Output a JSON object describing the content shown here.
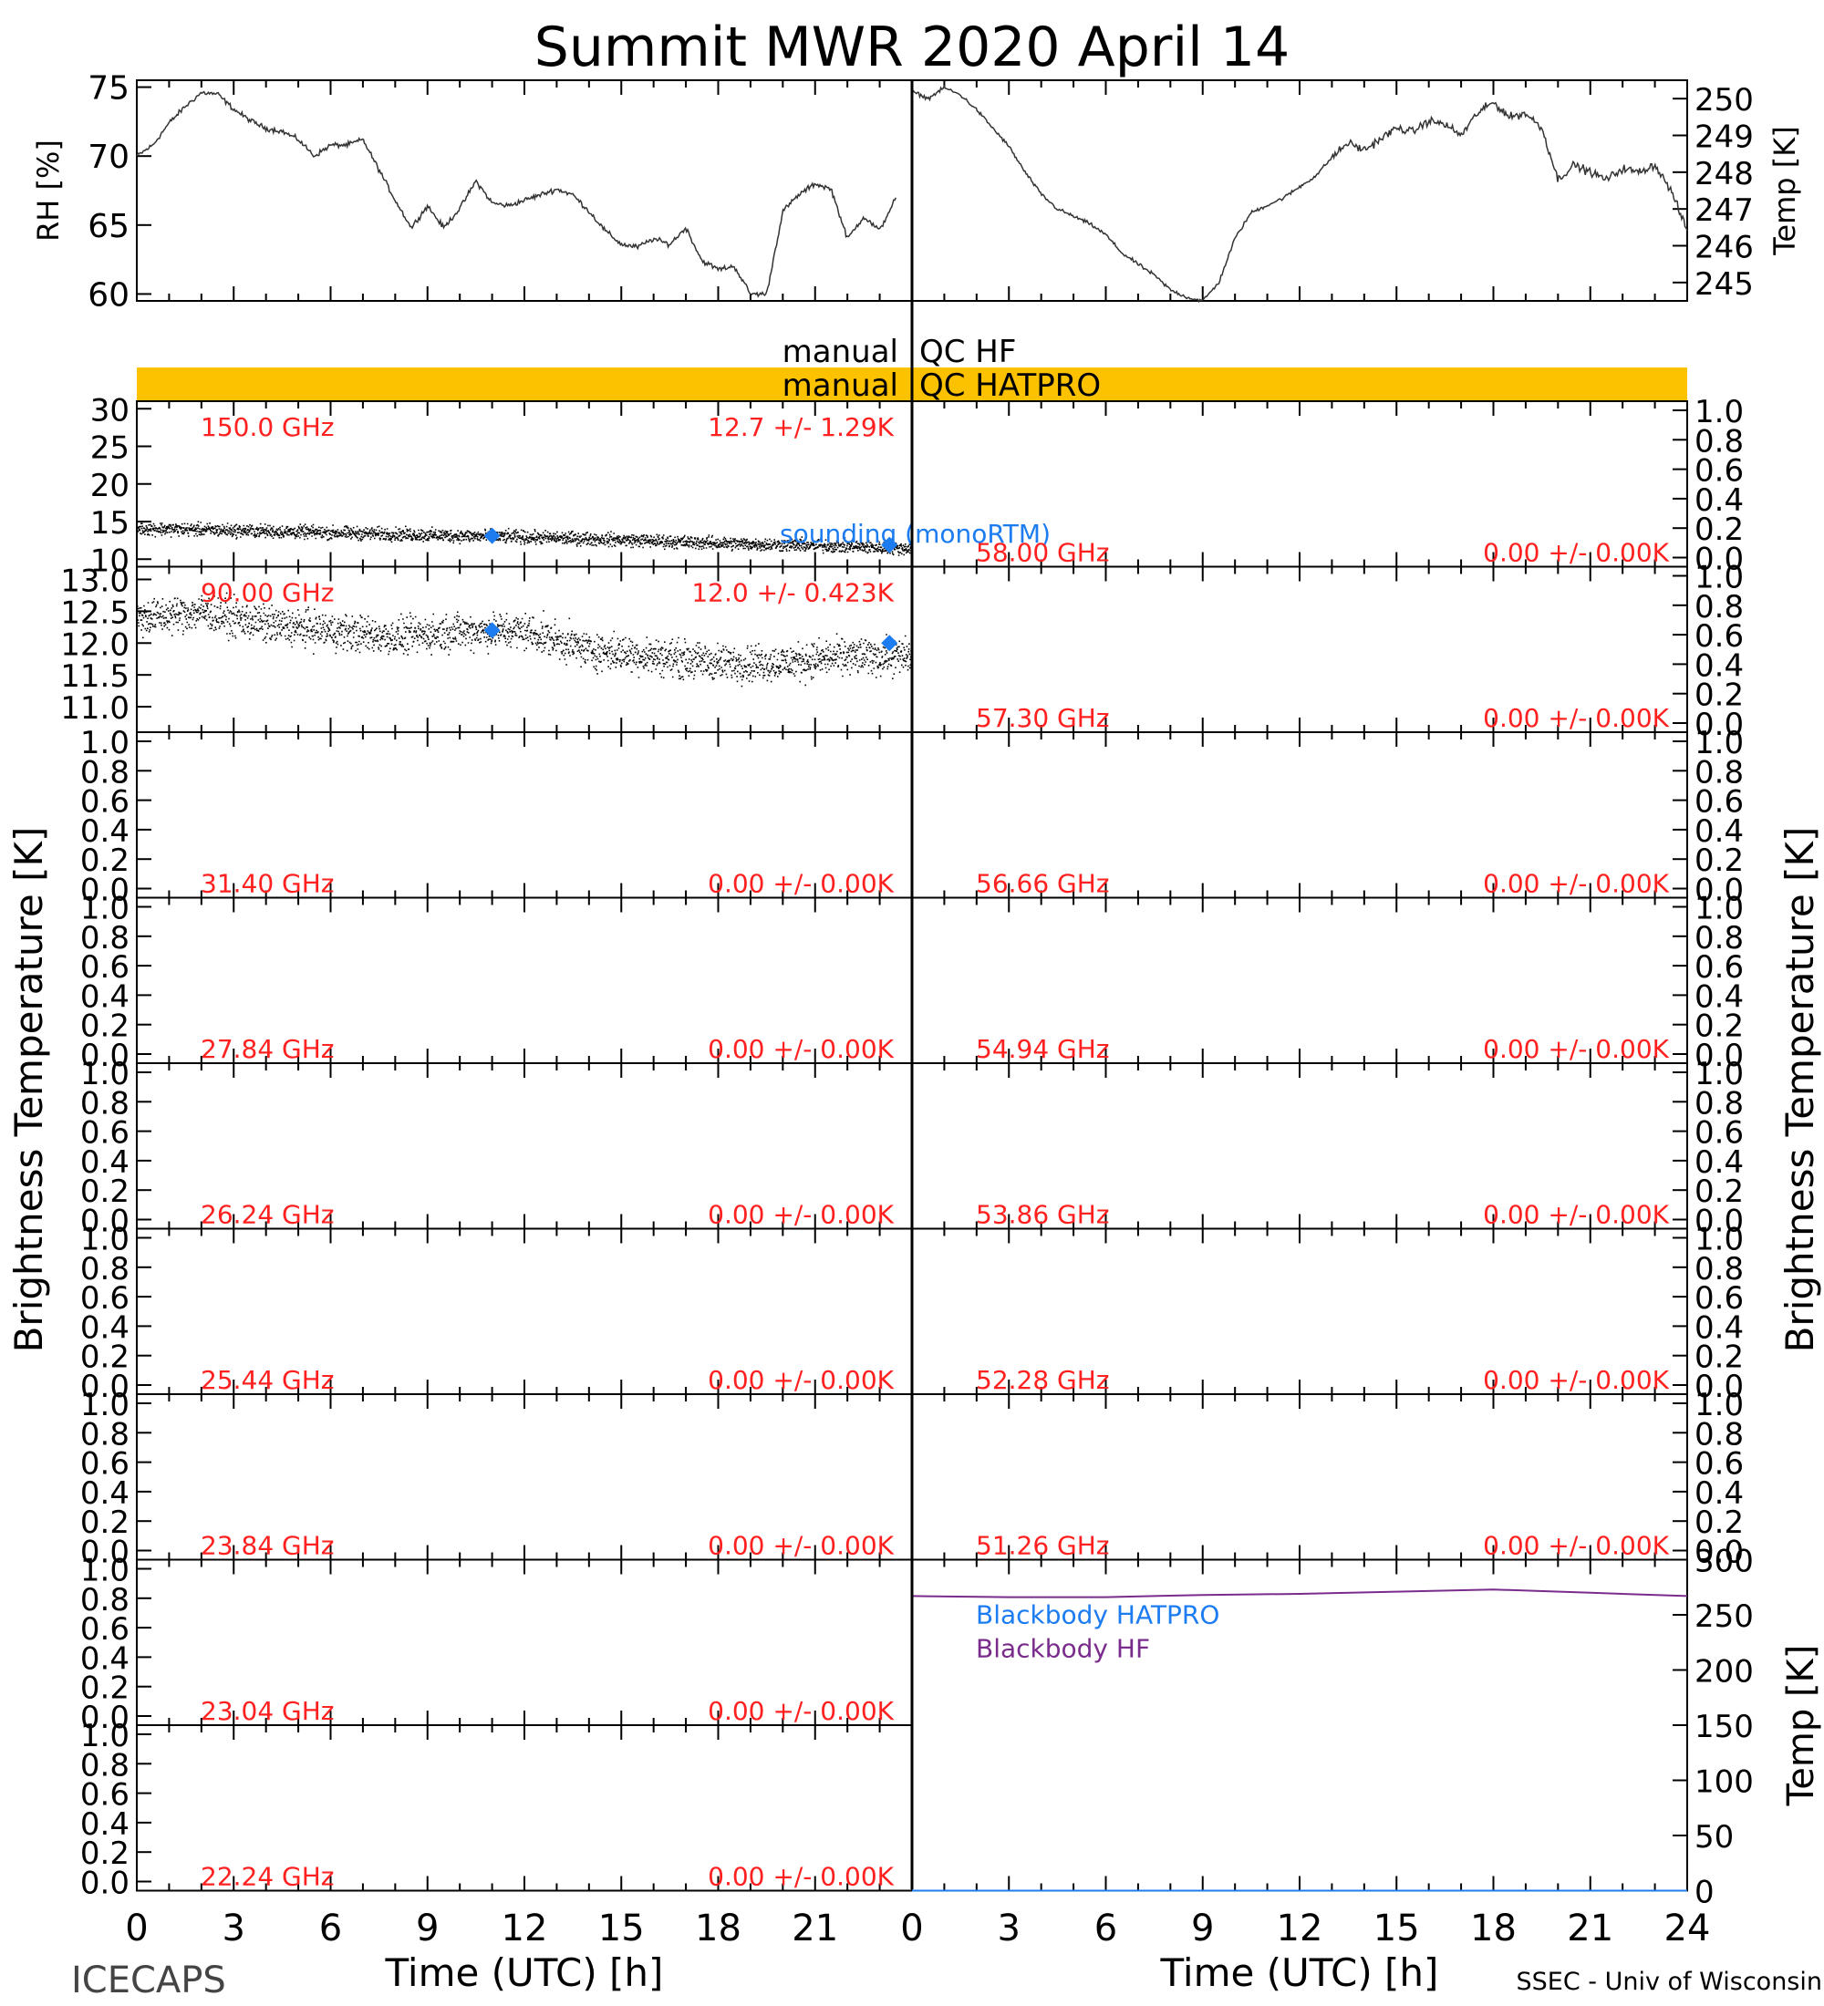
{
  "chart_data": {
    "type": "line",
    "title": "Summit MWR 2020 April 14",
    "footer_left": "ICECAPS",
    "footer_right": "SSEC - Univ of Wisconsin",
    "x_axis": {
      "label": "Time (UTC) [h]",
      "range": [
        0,
        24
      ],
      "ticks": [
        "0",
        "3",
        "6",
        "9",
        "12",
        "15",
        "18",
        "21",
        "24"
      ]
    },
    "x_ticks_left": [
      "0",
      "3",
      "6",
      "9",
      "12",
      "15",
      "18",
      "21"
    ],
    "met": {
      "rh": {
        "ylabel": "RH [%]",
        "ylim": [
          59.5,
          75.5
        ],
        "ticks": [
          "60",
          "65",
          "70",
          "75"
        ],
        "x": [
          0,
          0.5,
          1,
          1.5,
          2,
          2.5,
          3,
          3.5,
          4,
          4.5,
          5,
          5.5,
          6,
          6.5,
          7,
          7.5,
          8,
          8.5,
          9,
          9.5,
          10,
          10.5,
          11,
          11.5,
          12,
          12.5,
          13,
          13.5,
          14,
          14.5,
          15,
          15.5,
          16,
          16.5,
          17,
          17.5,
          18,
          18.5,
          19,
          19.5,
          20,
          20.5,
          21,
          21.5,
          22,
          22.5,
          23,
          23.5
        ],
        "values": [
          70.0,
          70.8,
          72.4,
          73.6,
          74.6,
          74.5,
          73.4,
          72.6,
          72.0,
          71.8,
          71.2,
          70.0,
          70.8,
          70.8,
          71.2,
          69.0,
          66.8,
          64.8,
          66.4,
          64.8,
          66.2,
          68.2,
          66.6,
          66.4,
          66.8,
          67.2,
          67.6,
          67.2,
          66.0,
          64.6,
          63.6,
          63.4,
          64.0,
          63.6,
          64.8,
          62.4,
          61.8,
          62.0,
          60.0,
          60.0,
          66.0,
          67.2,
          68.0,
          67.6,
          64.0,
          65.6,
          64.6,
          67.0
        ]
      },
      "temp": {
        "ylabel": "Temp [K]",
        "ylim": [
          244.5,
          250.5
        ],
        "ticks": [
          "245",
          "246",
          "247",
          "248",
          "249",
          "250"
        ],
        "x": [
          0,
          0.5,
          1,
          1.5,
          2,
          2.5,
          3,
          3.5,
          4,
          4.5,
          5,
          5.5,
          6,
          6.5,
          7,
          7.5,
          8,
          8.5,
          9,
          9.5,
          10,
          10.5,
          11,
          11.5,
          12,
          12.5,
          13,
          13.5,
          14,
          14.5,
          15,
          15.5,
          16,
          16.5,
          17,
          17.5,
          18,
          18.5,
          19,
          19.5,
          20,
          20.5,
          21,
          21.5,
          22,
          22.5,
          23,
          23.5,
          24
        ],
        "values": [
          250.2,
          250.0,
          250.3,
          250.1,
          249.7,
          249.2,
          248.7,
          248.0,
          247.4,
          247.0,
          246.8,
          246.6,
          246.3,
          245.8,
          245.5,
          245.2,
          244.8,
          244.6,
          244.5,
          245.0,
          246.2,
          246.9,
          247.1,
          247.3,
          247.6,
          247.9,
          248.4,
          248.8,
          248.6,
          248.9,
          249.2,
          249.1,
          249.4,
          249.3,
          249.0,
          249.6,
          249.9,
          249.5,
          249.6,
          249.2,
          247.8,
          248.2,
          248.0,
          247.8,
          248.1,
          248.0,
          248.2,
          247.5,
          246.4
        ]
      }
    },
    "qc_bars": [
      {
        "label": "manual QC HF",
        "left_text": "manual",
        "right_text": "QC HF",
        "color": "#ffffff"
      },
      {
        "label": "manual QC HATPRO",
        "left_text": "manual",
        "right_text": "QC HATPRO",
        "color": "#fcc200"
      }
    ],
    "ylabel_left": "Brightness Temperature [K]",
    "ylabel_right": "Brightness Temperature [K]",
    "empty_ticks": [
      "1.0",
      "0.8",
      "0.6",
      "0.4",
      "0.2",
      "0.0"
    ],
    "left_channels": [
      {
        "freq": "150.0 GHz",
        "stat": "12.7 +/- 1.29K",
        "ticks": [
          "30",
          "25",
          "20",
          "15",
          "10"
        ],
        "ylim": [
          9,
          31
        ],
        "mean": 12.7,
        "std": 1.29,
        "x": [
          0,
          2,
          4,
          6,
          8,
          10,
          12,
          14,
          16,
          18,
          20,
          22,
          24
        ],
        "values": [
          14.2,
          14.0,
          13.8,
          13.6,
          13.4,
          13.2,
          13.0,
          12.8,
          12.5,
          12.2,
          12.0,
          11.8,
          11.5
        ],
        "sondes": [
          {
            "x": 11.0,
            "y": 13.1
          },
          {
            "x": 23.3,
            "y": 11.9
          }
        ],
        "legend": "sounding (monoRTM)"
      },
      {
        "freq": "90.00 GHz",
        "stat": "12.0 +/- 0.423K",
        "ticks": [
          "13.0",
          "12.5",
          "12.0",
          "11.5",
          "11.0"
        ],
        "ylim": [
          10.6,
          13.2
        ],
        "mean": 12.0,
        "std": 0.423,
        "x": [
          0,
          2,
          4,
          6,
          8,
          10,
          12,
          14,
          16,
          18,
          20,
          22,
          24
        ],
        "values": [
          12.4,
          12.5,
          12.3,
          12.2,
          12.1,
          12.2,
          12.2,
          11.9,
          11.8,
          11.7,
          11.7,
          11.8,
          11.8
        ],
        "sondes": [
          {
            "x": 11.0,
            "y": 12.2
          },
          {
            "x": 23.3,
            "y": 12.0
          }
        ]
      },
      {
        "freq": "31.40 GHz",
        "stat": "0.00 +/- 0.00K"
      },
      {
        "freq": "27.84 GHz",
        "stat": "0.00 +/- 0.00K"
      },
      {
        "freq": "26.24 GHz",
        "stat": "0.00 +/- 0.00K"
      },
      {
        "freq": "25.44 GHz",
        "stat": "0.00 +/- 0.00K"
      },
      {
        "freq": "23.84 GHz",
        "stat": "0.00 +/- 0.00K"
      },
      {
        "freq": "23.04 GHz",
        "stat": "0.00 +/- 0.00K"
      },
      {
        "freq": "22.24 GHz",
        "stat": "0.00 +/- 0.00K"
      }
    ],
    "right_channels": [
      {
        "freq": "58.00 GHz",
        "stat": "0.00 +/- 0.00K"
      },
      {
        "freq": "57.30 GHz",
        "stat": "0.00 +/- 0.00K"
      },
      {
        "freq": "56.66 GHz",
        "stat": "0.00 +/- 0.00K"
      },
      {
        "freq": "54.94 GHz",
        "stat": "0.00 +/- 0.00K"
      },
      {
        "freq": "53.86 GHz",
        "stat": "0.00 +/- 0.00K"
      },
      {
        "freq": "52.28 GHz",
        "stat": "0.00 +/- 0.00K"
      },
      {
        "freq": "51.26 GHz",
        "stat": "0.00 +/- 0.00K"
      }
    ],
    "blackbody": {
      "ylabel": "Temp [K]",
      "ylim": [
        0,
        300
      ],
      "ticks": [
        "300",
        "250",
        "200",
        "150",
        "100",
        "50",
        "0"
      ],
      "series": [
        {
          "name": "Blackbody HATPRO",
          "color": "#1c7cf0",
          "x": [
            0,
            24
          ],
          "values": [
            0,
            0
          ]
        },
        {
          "name": "Blackbody HF",
          "color": "#7a2c8c",
          "x": [
            0,
            3,
            6,
            9,
            12,
            15,
            18,
            21,
            24
          ],
          "values": [
            267,
            266,
            266,
            268,
            269,
            271,
            273,
            270,
            267
          ]
        }
      ]
    },
    "colors": {
      "stats": "#ff2020",
      "sonde": "#1c7cf0",
      "data": "#000000",
      "qc_bar": "#fcc200"
    }
  }
}
